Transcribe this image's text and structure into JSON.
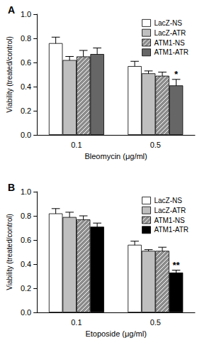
{
  "chart_data": [
    {
      "type": "bar",
      "title": "A",
      "x_label": "Bleomycin (μg/ml)",
      "y_label": "Viability (treated/control)",
      "categories": [
        "0.1",
        "0.5"
      ],
      "series": [
        {
          "name": "LacZ-NS",
          "color": "#ffffff",
          "values": [
            0.76,
            0.57
          ],
          "errors": [
            0.05,
            0.04
          ]
        },
        {
          "name": "LacZ-ATR",
          "color": "#bfbfbf",
          "values": [
            0.62,
            0.51
          ],
          "errors": [
            0.03,
            0.02
          ]
        },
        {
          "name": "ATM1-NS",
          "color": "#8c8c8c",
          "values": [
            0.65,
            0.49
          ],
          "errors": [
            0.05,
            0.03
          ]
        },
        {
          "name": "ATM1-ATR",
          "color": "#666666",
          "values": [
            0.67,
            0.41
          ],
          "errors": [
            0.05,
            0.05
          ]
        }
      ],
      "annotations": [
        {
          "category": "0.5",
          "series": "ATM1-ATR",
          "text": "*"
        }
      ],
      "ylim": [
        0,
        1
      ],
      "yticks": [
        {
          "value": 0,
          "label": "0.0"
        },
        0.2,
        0.4,
        0.6,
        0.8,
        {
          "value": 1,
          "label": "1.0"
        }
      ],
      "grid": false,
      "legend": "upper right"
    },
    {
      "type": "bar",
      "title": "B",
      "x_label": "Etoposide (μg/ml)",
      "y_label": "Viability (treated/control)",
      "categories": [
        "0.1",
        "0.5"
      ],
      "series": [
        {
          "name": "LacZ-NS",
          "color": "#ffffff",
          "values": [
            0.82,
            0.56
          ],
          "errors": [
            0.04,
            0.03
          ]
        },
        {
          "name": "LacZ-ATR",
          "color": "#bfbfbf",
          "values": [
            0.79,
            0.51
          ],
          "errors": [
            0.04,
            0.01
          ]
        },
        {
          "name": "ATM1-NS",
          "color": "#8c8c8c",
          "values": [
            0.77,
            0.51
          ],
          "errors": [
            0.03,
            0.03
          ]
        },
        {
          "name": "ATM1-ATR",
          "color": "#000000",
          "values": [
            0.71,
            0.33
          ],
          "errors": [
            0.03,
            0.02
          ]
        }
      ],
      "annotations": [
        {
          "category": "0.5",
          "series": "ATM1-ATR",
          "text": "**"
        }
      ],
      "ylim": [
        0,
        1
      ],
      "yticks": [
        {
          "value": 0,
          "label": "0.0"
        },
        0.2,
        0.4,
        0.6,
        0.8,
        {
          "value": 1,
          "label": "1.0"
        }
      ],
      "grid": false,
      "legend": "upper right"
    }
  ]
}
